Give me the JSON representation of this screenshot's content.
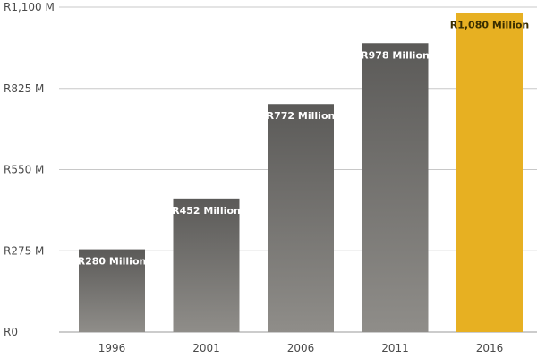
{
  "chart_data": {
    "type": "bar",
    "title": "",
    "xlabel": "",
    "ylabel": "",
    "categories": [
      "1996",
      "2001",
      "2006",
      "2011",
      "2016"
    ],
    "values": [
      280,
      452,
      772,
      978,
      1080
    ],
    "bar_labels": [
      "R280 Million",
      "R452 Million",
      "R772 Million",
      "R978 Million",
      "R1,080 Million"
    ],
    "ylim": [
      0,
      1100
    ],
    "y_ticks": [
      0,
      275,
      550,
      825,
      1100
    ],
    "y_tick_labels": [
      "R0",
      "R275 M",
      "R550 M",
      "R825 M",
      "R1,100 M"
    ],
    "grid": true,
    "legend": "none",
    "colors": {
      "bar_top": "#5b5a58",
      "bar_bottom": "#8f8d89",
      "highlight": "#e7b022",
      "highlight_index": 4,
      "grid": "#c8c8c8"
    }
  }
}
